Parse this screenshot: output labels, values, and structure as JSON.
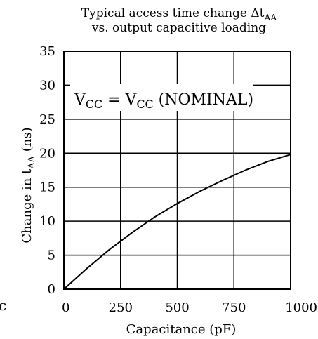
{
  "chart_data": {
    "type": "line",
    "title": {
      "line1_main": "Typical access time change Δt",
      "line1_sub": "AA",
      "line2": "vs. output capacitive loading"
    },
    "xlabel": "Capacitance (pF)",
    "ylabel": {
      "main": "Change in t",
      "sub": "AA",
      "suffix": " (ns)"
    },
    "xlim": [
      0,
      1000
    ],
    "ylim": [
      0,
      35
    ],
    "xticks": [
      0,
      250,
      500,
      750,
      1000
    ],
    "yticks": [
      0,
      5,
      10,
      15,
      20,
      25,
      30,
      35
    ],
    "grid": true,
    "annotation": {
      "v1": "V",
      "s1": "CC",
      "mid": " = V",
      "s2": "CC",
      "tail": " (NOMINAL)"
    },
    "series": [
      {
        "x": [
          0,
          100,
          200,
          300,
          400,
          500,
          600,
          700,
          800,
          900,
          1000
        ],
        "y": [
          0,
          3.0,
          5.8,
          8.3,
          10.6,
          12.6,
          14.4,
          16.0,
          17.5,
          18.8,
          19.8
        ]
      }
    ],
    "stray_mark": "c"
  }
}
